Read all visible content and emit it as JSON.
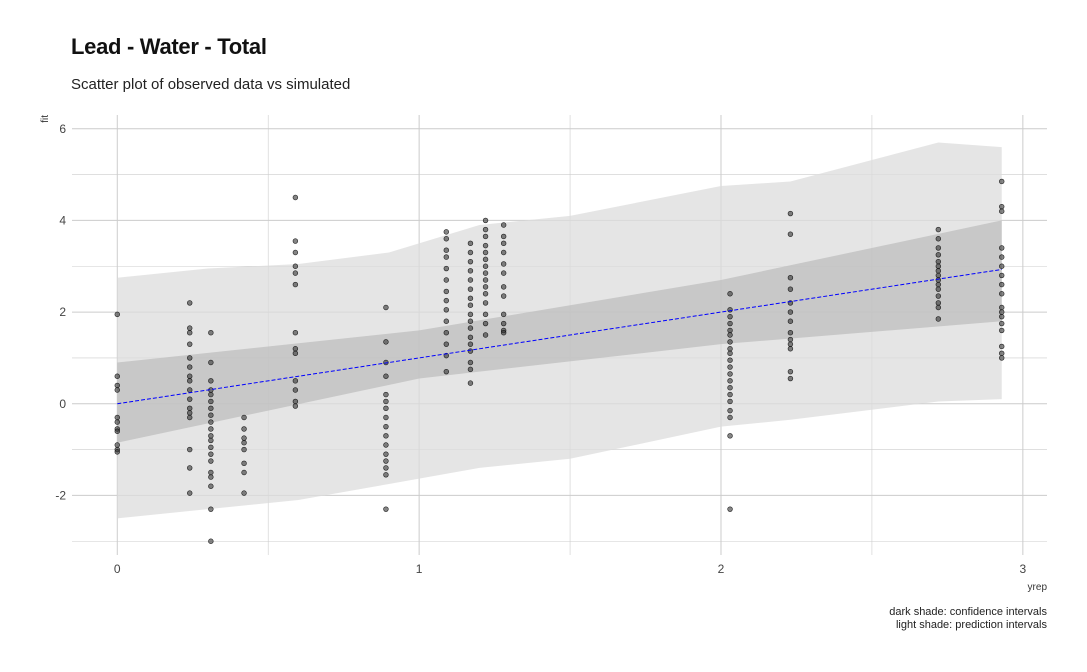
{
  "title": "Lead - Water - Total",
  "subtitle": "Scatter plot of observed data vs simulated",
  "caption": {
    "line1": "dark shade: confidence intervals",
    "line2": "light shade: prediction intervals"
  },
  "colors": {
    "fit_line": "#0000ff",
    "confidence_band": "#bdbdbd",
    "prediction_band": "#dcdcdc",
    "points": "#333333",
    "grid": "#cccccc"
  },
  "chart_data": {
    "type": "scatter",
    "title": "Lead - Water - Total",
    "subtitle": "Scatter plot of observed data vs simulated",
    "xlabel": "yrep",
    "ylabel": "fit",
    "xlim": [
      -0.15,
      3.08
    ],
    "ylim": [
      -3.3,
      6.3
    ],
    "x_ticks": [
      0,
      1,
      2,
      3
    ],
    "y_ticks": [
      -2,
      0,
      2,
      4,
      6
    ],
    "grid": true,
    "fit_line": {
      "x": [
        0,
        2.93
      ],
      "y": [
        0,
        2.93
      ],
      "style": "dashed"
    },
    "confidence_band": {
      "x": [
        0,
        1.0,
        2.0,
        2.93
      ],
      "lower": [
        -0.85,
        0.55,
        1.3,
        1.8
      ],
      "upper": [
        0.9,
        1.6,
        2.7,
        4.0
      ]
    },
    "prediction_band": {
      "x": [
        0,
        0.3,
        0.6,
        0.9,
        1.2,
        1.5,
        2.0,
        2.23,
        2.72,
        2.93
      ],
      "lower": [
        -2.5,
        -2.3,
        -2.1,
        -1.75,
        -1.4,
        -1.2,
        -0.5,
        -0.35,
        0.05,
        0.1
      ],
      "upper": [
        2.75,
        2.95,
        3.05,
        3.3,
        3.9,
        4.1,
        4.75,
        4.85,
        5.7,
        5.6
      ]
    },
    "points": [
      {
        "x": 0,
        "y": [
          1.95,
          0.6,
          0.4,
          0.3,
          -0.3,
          -0.4,
          -0.55,
          -0.6,
          -0.9,
          -1.0,
          -1.05
        ]
      },
      {
        "x": 0.24,
        "y": [
          2.2,
          1.65,
          1.55,
          1.3,
          1.0,
          0.8,
          0.6,
          0.5,
          0.3,
          0.1,
          -0.1,
          -0.2,
          -0.3,
          -1.0,
          -1.4,
          -1.95
        ]
      },
      {
        "x": 0.31,
        "y": [
          1.55,
          0.9,
          0.5,
          0.3,
          0.2,
          0.05,
          -0.1,
          -0.25,
          -0.4,
          -0.55,
          -0.7,
          -0.8,
          -0.95,
          -1.1,
          -1.25,
          -1.5,
          -1.6,
          -1.8,
          -2.3,
          -3.0
        ]
      },
      {
        "x": 0.42,
        "y": [
          -0.3,
          -0.55,
          -0.75,
          -0.85,
          -1.0,
          -1.3,
          -1.5,
          -1.95
        ]
      },
      {
        "x": 0.59,
        "y": [
          4.5,
          3.55,
          3.3,
          3.0,
          2.85,
          2.6,
          1.55,
          1.2,
          1.1,
          0.5,
          0.3,
          0.05,
          -0.05
        ]
      },
      {
        "x": 0.89,
        "y": [
          2.1,
          1.35,
          0.9,
          0.6,
          0.2,
          0.05,
          -0.1,
          -0.3,
          -0.5,
          -0.7,
          -0.9,
          -1.1,
          -1.25,
          -1.4,
          -1.55,
          -2.3
        ]
      },
      {
        "x": 1.09,
        "y": [
          3.75,
          3.6,
          3.35,
          3.2,
          2.95,
          2.7,
          2.45,
          2.25,
          2.05,
          1.8,
          1.55,
          1.3,
          1.05,
          0.7
        ]
      },
      {
        "x": 1.17,
        "y": [
          3.5,
          3.3,
          3.1,
          2.9,
          2.7,
          2.5,
          2.3,
          2.15,
          1.95,
          1.8,
          1.65,
          1.45,
          1.3,
          1.15,
          0.9,
          0.75,
          0.45
        ]
      },
      {
        "x": 1.22,
        "y": [
          4.0,
          3.8,
          3.65,
          3.45,
          3.3,
          3.15,
          3.0,
          2.85,
          2.7,
          2.55,
          2.4,
          2.2,
          1.95,
          1.75,
          1.5
        ]
      },
      {
        "x": 1.28,
        "y": [
          3.9,
          3.65,
          3.5,
          3.3,
          3.05,
          2.85,
          2.55,
          2.35,
          1.95,
          1.75,
          1.6,
          1.55
        ]
      },
      {
        "x": 2.03,
        "y": [
          2.4,
          2.05,
          1.9,
          1.75,
          1.6,
          1.5,
          1.35,
          1.2,
          1.1,
          0.95,
          0.8,
          0.65,
          0.5,
          0.35,
          0.2,
          0.05,
          -0.15,
          -0.3,
          -0.7,
          -2.3
        ]
      },
      {
        "x": 2.23,
        "y": [
          4.15,
          3.7,
          2.75,
          2.5,
          2.2,
          2.0,
          1.8,
          1.55,
          1.4,
          1.3,
          1.2,
          0.7,
          0.55
        ]
      },
      {
        "x": 2.72,
        "y": [
          3.8,
          3.6,
          3.4,
          3.25,
          3.1,
          3.0,
          2.9,
          2.8,
          2.7,
          2.6,
          2.5,
          2.35,
          2.2,
          2.1,
          1.85
        ]
      },
      {
        "x": 2.93,
        "y": [
          4.85,
          4.3,
          4.2,
          3.4,
          3.2,
          3.0,
          2.8,
          2.6,
          2.4,
          2.1,
          2.0,
          1.9,
          1.75,
          1.6,
          1.25,
          1.1,
          1.0
        ]
      }
    ]
  }
}
